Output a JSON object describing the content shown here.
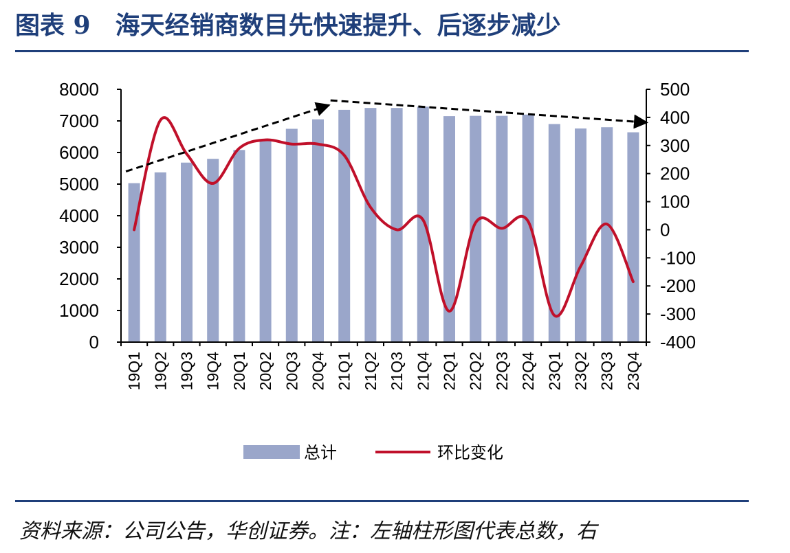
{
  "header": {
    "title": "图表 9　海天经销商数目先快速提升、后逐步减少"
  },
  "footer": {
    "source": "资料来源：公司公告，华创证券。注：左轴柱形图代表总数，右"
  },
  "colors": {
    "title": "#1f3f7a",
    "rule": "#1f3f7a",
    "bar": "#9aa6ca",
    "line": "#c0102a",
    "arrow": "#000000"
  },
  "chart_data": {
    "type": "bar",
    "categories": [
      "19Q1",
      "19Q2",
      "19Q3",
      "19Q4",
      "20Q1",
      "20Q2",
      "20Q3",
      "20Q4",
      "21Q1",
      "21Q2",
      "21Q3",
      "21Q4",
      "22Q1",
      "22Q2",
      "22Q3",
      "22Q4",
      "23Q1",
      "23Q2",
      "23Q3",
      "23Q4"
    ],
    "series": [
      {
        "name": "总计",
        "type": "bar",
        "axis": "left",
        "values": [
          5030,
          5370,
          5680,
          5800,
          6080,
          6410,
          6750,
          7050,
          7350,
          7410,
          7410,
          7450,
          7150,
          7160,
          7160,
          7200,
          6900,
          6760,
          6800,
          6640
        ]
      },
      {
        "name": "环比变化",
        "type": "line",
        "axis": "right",
        "values": [
          0,
          390,
          270,
          165,
          290,
          320,
          305,
          305,
          265,
          80,
          0,
          35,
          -290,
          25,
          5,
          30,
          -305,
          -130,
          20,
          -185
        ]
      }
    ],
    "yaxis_left": {
      "min": 0,
      "max": 8000,
      "ticks": [
        "0",
        "1000",
        "2000",
        "3000",
        "4000",
        "5000",
        "6000",
        "7000",
        "8000"
      ]
    },
    "yaxis_right": {
      "min": -400,
      "max": 500,
      "ticks": [
        "-400",
        "-300",
        "-200",
        "-100",
        "0",
        "100",
        "200",
        "300",
        "400",
        "500"
      ]
    },
    "annotations": [
      {
        "type": "dashed-arrow",
        "from": {
          "category": "19Q1",
          "left_value": 5400
        },
        "to": {
          "category": "21Q1",
          "left_value": 7500
        }
      },
      {
        "type": "dashed-arrow",
        "from": {
          "category": "21Q1",
          "left_value": 7650
        },
        "to": {
          "category": "23Q4",
          "left_value": 6950
        }
      }
    ],
    "legend": {
      "position": "bottom"
    },
    "grid": false
  }
}
